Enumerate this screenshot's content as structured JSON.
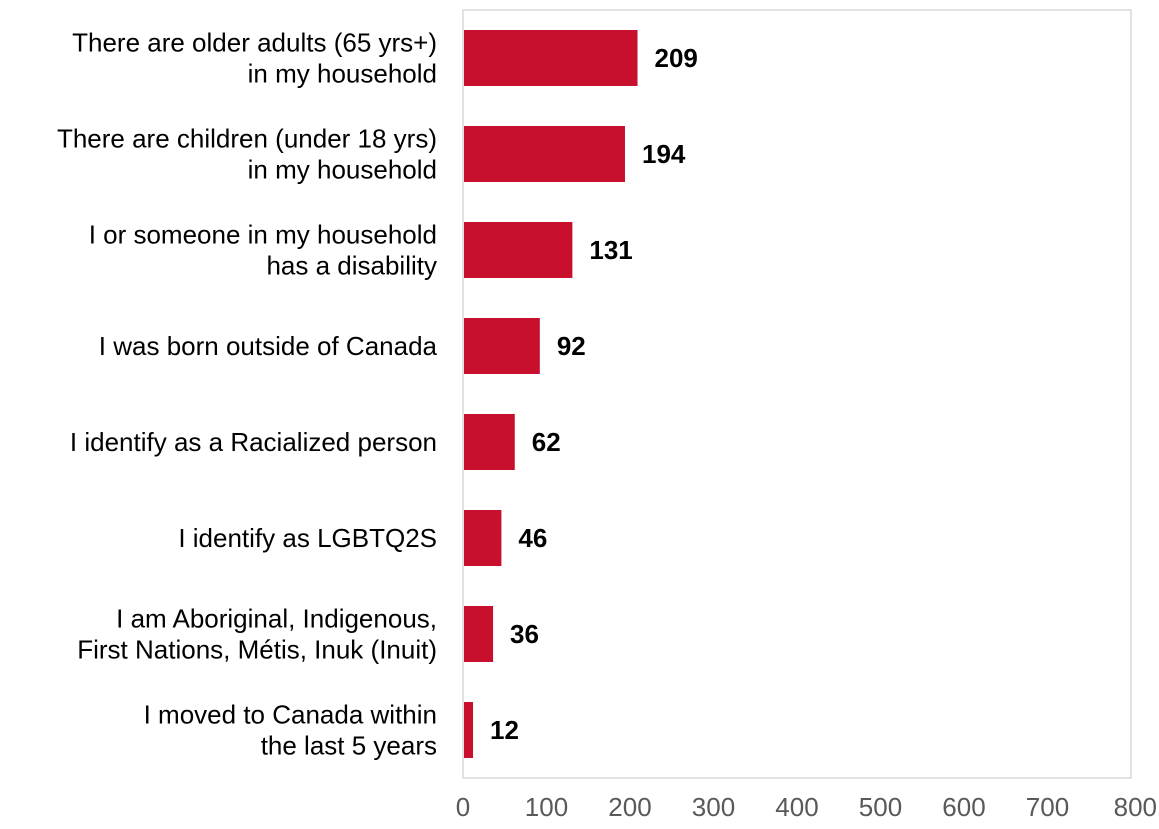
{
  "chart_data": {
    "type": "bar",
    "orientation": "horizontal",
    "categories": [
      [
        "There are older adults (65 yrs+)",
        "in my household"
      ],
      [
        "There are children (under 18 yrs)",
        "in my household"
      ],
      [
        "I or someone in my household",
        "has a disability"
      ],
      [
        "I was born outside of Canada"
      ],
      [
        "I identify as a Racialized person"
      ],
      [
        "I identify as LGBTQ2S"
      ],
      [
        "I am Aboriginal, Indigenous,",
        "First Nations, Métis, Inuk (Inuit)"
      ],
      [
        "I moved to Canada within",
        "the last 5 years"
      ]
    ],
    "values": [
      209,
      194,
      131,
      92,
      62,
      46,
      36,
      12
    ],
    "value_labels": [
      "209",
      "194",
      "131",
      "92",
      "62",
      "46",
      "36",
      "12"
    ],
    "xlim": [
      0,
      800
    ],
    "xticks": [
      "0",
      "100",
      "200",
      "300",
      "400",
      "500",
      "600",
      "700",
      "800"
    ],
    "xlabel": "",
    "ylabel": "",
    "title": "",
    "grid": false,
    "legend": "none",
    "bar_color": "#C8102E",
    "frame_color": "#D9D9D9"
  }
}
